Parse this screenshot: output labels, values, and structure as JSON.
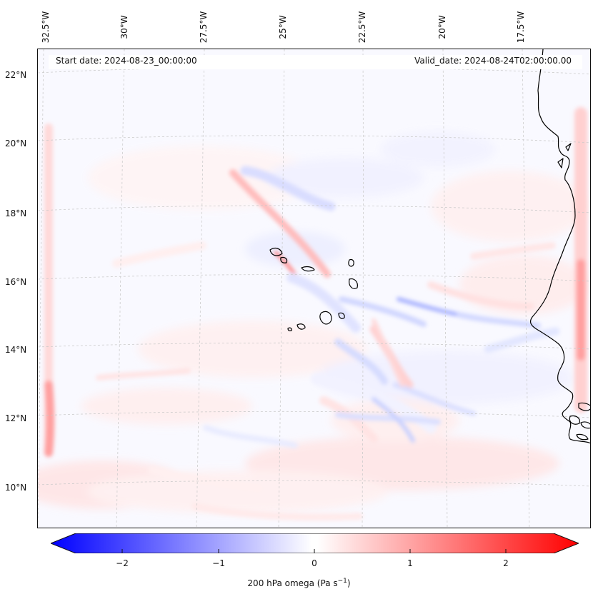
{
  "header": {
    "start_date": "Start date: 2024-08-23_00:00:00",
    "valid_date": "Valid_date: 2024-08-24T02:00:00.00"
  },
  "map": {
    "variable": "200 hPa omega",
    "longitude_labels": [
      "32.5°W",
      "30°W",
      "27.5°W",
      "25°W",
      "22.5°W",
      "20°W",
      "17.5°W"
    ],
    "latitude_labels": [
      "22°N",
      "20°N",
      "18°N",
      "16°N",
      "14°N",
      "12°N",
      "10°N"
    ],
    "colors": {
      "negative": "#0000ff",
      "zero": "#ffffff",
      "positive": "#ff0000",
      "coastline": "#000000",
      "gridline": "#c8c8c8"
    }
  },
  "colorbar": {
    "ticks": [
      "−2",
      "−1",
      "0",
      "1",
      "2"
    ],
    "label_main": "200 hPa omega (Pa s",
    "label_sup": "−1",
    "label_end": ")"
  }
}
